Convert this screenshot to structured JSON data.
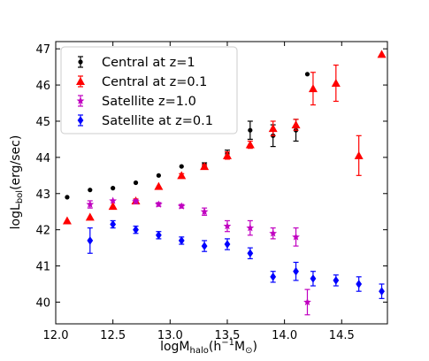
{
  "chart_data": {
    "type": "scatter",
    "xlabel_main": "logM",
    "xlabel_sub": "halo",
    "xlabel_tail": "(h",
    "xlabel_exp": "−1",
    "xlabel_m": "M",
    "xlabel_sun": "⊙",
    "xlabel_close": ")",
    "ylabel_main": "logL",
    "ylabel_sub": "bol",
    "ylabel_tail": "(erg/sec)",
    "xlim": [
      12.0,
      14.9
    ],
    "ylim": [
      39.4,
      47.2
    ],
    "xticks": [
      12.0,
      12.5,
      13.0,
      13.5,
      14.0,
      14.5
    ],
    "xtick_labels": [
      "12.0",
      "12.5",
      "13.0",
      "13.5",
      "14.0",
      "14.5"
    ],
    "yticks": [
      40,
      41,
      42,
      43,
      44,
      45,
      46,
      47
    ],
    "ytick_labels": [
      "40",
      "41",
      "42",
      "43",
      "44",
      "45",
      "46",
      "47"
    ],
    "grid": false,
    "legend_position": "top-left",
    "series": [
      {
        "name": "Central at z=1",
        "color": "#000000",
        "marker": "circle",
        "x": [
          12.1,
          12.3,
          12.5,
          12.7,
          12.9,
          13.1,
          13.3,
          13.5,
          13.7,
          13.9,
          14.1,
          14.2
        ],
        "y": [
          42.9,
          43.1,
          43.15,
          43.3,
          43.5,
          43.75,
          43.8,
          44.1,
          44.75,
          44.6,
          44.75,
          46.3
        ],
        "err": [
          0.0,
          0.0,
          0.0,
          0.0,
          0.0,
          0.0,
          0.05,
          0.1,
          0.25,
          0.3,
          0.3,
          0.0
        ]
      },
      {
        "name": "Central at z=0.1",
        "color": "#ff0000",
        "marker": "triangle",
        "x": [
          12.1,
          12.3,
          12.5,
          12.7,
          12.9,
          13.1,
          13.3,
          13.5,
          13.7,
          13.9,
          14.1,
          14.25,
          14.45,
          14.65,
          14.85
        ],
        "y": [
          42.25,
          42.35,
          42.65,
          42.8,
          43.2,
          43.5,
          43.75,
          44.05,
          44.35,
          44.8,
          44.9,
          45.9,
          46.05,
          44.05,
          46.85
        ],
        "err": [
          0.0,
          0.0,
          0.0,
          0.05,
          0.0,
          0.05,
          0.05,
          0.1,
          0.1,
          0.2,
          0.15,
          0.45,
          0.5,
          0.55,
          0.0
        ]
      },
      {
        "name": "Satellite z=1.0",
        "color": "#c000c0",
        "marker": "star",
        "x": [
          12.3,
          12.5,
          12.7,
          12.9,
          13.1,
          13.3,
          13.5,
          13.7,
          13.9,
          14.1,
          14.2
        ],
        "y": [
          42.7,
          42.8,
          42.78,
          42.7,
          42.65,
          42.5,
          42.1,
          42.05,
          41.9,
          41.8,
          40.0
        ],
        "err": [
          0.1,
          0.0,
          0.05,
          0.05,
          0.05,
          0.1,
          0.15,
          0.2,
          0.15,
          0.25,
          0.35
        ]
      },
      {
        "name": "Satellite at z=0.1",
        "color": "#0000ff",
        "marker": "diamond",
        "x": [
          12.3,
          12.5,
          12.7,
          12.9,
          13.1,
          13.3,
          13.5,
          13.7,
          13.9,
          14.1,
          14.25,
          14.45,
          14.65,
          14.85
        ],
        "y": [
          41.7,
          42.15,
          42.0,
          41.85,
          41.7,
          41.55,
          41.6,
          41.35,
          40.7,
          40.85,
          40.65,
          40.6,
          40.5,
          40.3
        ],
        "err": [
          0.35,
          0.1,
          0.1,
          0.1,
          0.1,
          0.15,
          0.15,
          0.15,
          0.15,
          0.25,
          0.2,
          0.15,
          0.2,
          0.2
        ]
      }
    ]
  }
}
